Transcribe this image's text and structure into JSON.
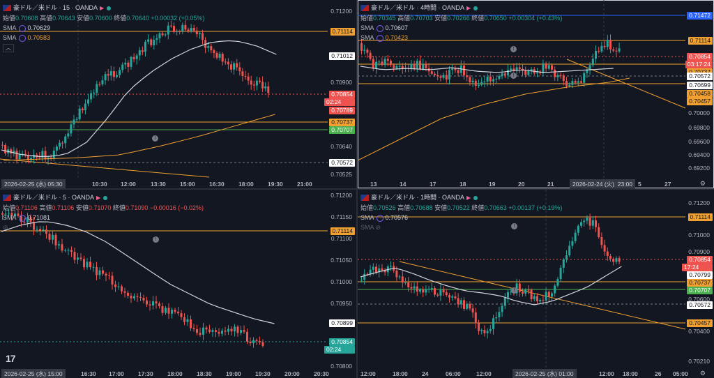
{
  "panels": [
    {
      "id": "p15",
      "title": "豪ドル／米ドル · 15 · OANDA",
      "ohlc": {
        "o_label": "始値",
        "o": "0.70608",
        "h_label": "高値",
        "h": "0.70643",
        "l_label": "安値",
        "l": "0.70600",
        "c_label": "終値",
        "c": "0.70640",
        "chg": "+0.00032 (+0.05%)",
        "chg_dir": "up"
      },
      "sma": [
        {
          "label": "SMA",
          "value": "0.70629",
          "color": "#d1d4dc"
        },
        {
          "label": "SMA",
          "value": "0.70583",
          "color": "#f0a030"
        }
      ],
      "collapse_icon": "chevron-up",
      "price_labels": [
        "0.71200",
        "0.70900",
        "0.70640",
        "0.70525"
      ],
      "tags": [
        {
          "text": "0.71114",
          "bg": "#f0a030",
          "fg": "#131722"
        },
        {
          "text": "0.71012",
          "bg": "#ffffff",
          "fg": "#131722"
        },
        {
          "text": "0.70854",
          "bg": "#ef5350",
          "fg": "#ffffff"
        },
        {
          "text": "02:24",
          "bg": "#ef5350",
          "fg": "#ffffff"
        },
        {
          "text": "0.70789",
          "bg": "#ef5350",
          "fg": "#ffffff"
        },
        {
          "text": "0.70737",
          "bg": "#f0a030",
          "fg": "#131722"
        },
        {
          "text": "0.70707",
          "bg": "#4caf50",
          "fg": "#ffffff"
        },
        {
          "text": "0.70572",
          "bg": "#ffffff",
          "fg": "#131722"
        }
      ],
      "time_labels": [
        "10:30",
        "12:00",
        "13:30",
        "15:00",
        "16:30",
        "18:00",
        "19:30",
        "21:00"
      ],
      "cross_time": "2026-02-25 (水)  05:30"
    },
    {
      "id": "p4h",
      "title": "豪ドル／米ドル · 4時間 · OANDA",
      "ohlc": {
        "o_label": "始値",
        "o": "0.70345",
        "h_label": "高値",
        "h": "0.70703",
        "l_label": "安値",
        "l": "0.70266",
        "c_label": "終値",
        "c": "0.70650",
        "chg": "+0.00304 (+0.43%)",
        "chg_dir": "up"
      },
      "sma": [
        {
          "label": "SMA",
          "value": "0.70607",
          "color": "#d1d4dc"
        },
        {
          "label": "SMA",
          "value": "0.70423",
          "color": "#f0a030"
        }
      ],
      "price_labels": [
        "0.70000",
        "0.69800",
        "0.69600",
        "0.69400",
        "0.69200"
      ],
      "tags": [
        {
          "text": "0.71472",
          "bg": "#2962ff",
          "fg": "#ffffff"
        },
        {
          "text": "0.71114",
          "bg": "#f0a030",
          "fg": "#131722"
        },
        {
          "text": "0.70854",
          "bg": "#ef5350",
          "fg": "#ffffff"
        },
        {
          "text": "03:17:24",
          "bg": "#ef5350",
          "fg": "#ffffff"
        },
        {
          "text": "0.70572",
          "bg": "#ffffff",
          "fg": "#131722"
        },
        {
          "text": "0.70737",
          "bg": "#f0a030",
          "fg": "#131722"
        },
        {
          "text": "0.70699",
          "bg": "#ffffff",
          "fg": "#131722"
        },
        {
          "text": "0.70458",
          "bg": "#f0a030",
          "fg": "#131722"
        },
        {
          "text": "0.70457",
          "bg": "#f0a030",
          "fg": "#131722"
        }
      ],
      "time_labels": [
        "13",
        "14",
        "17",
        "18",
        "19",
        "20",
        "21",
        "23:00",
        "5",
        "27"
      ],
      "cross_time": "2026-02-24 (火)"
    },
    {
      "id": "p5",
      "title": "豪ドル／米ドル · 5 · OANDA",
      "ohlc": {
        "o_label": "始値",
        "o": "0.71106",
        "h_label": "高値",
        "h": "0.71106",
        "l_label": "安値",
        "l": "0.71070",
        "c_label": "終値",
        "c": "0.71090",
        "chg": "−0.00016 (−0.02%)",
        "chg_dir": "down"
      },
      "sma": [
        {
          "label": "SMA",
          "value": "0.71081",
          "color": "#d1d4dc"
        }
      ],
      "price_labels": [
        "0.71200",
        "0.71150",
        "0.71100",
        "0.71050",
        "0.71000",
        "0.70950",
        "0.70800"
      ],
      "tags": [
        {
          "text": "0.71114",
          "bg": "#f0a030",
          "fg": "#131722"
        },
        {
          "text": "0.70899",
          "bg": "#ffffff",
          "fg": "#131722"
        },
        {
          "text": "0.70854",
          "bg": "#26a69a",
          "fg": "#ffffff"
        },
        {
          "text": "02:24",
          "bg": "#26a69a",
          "fg": "#ffffff"
        }
      ],
      "time_labels": [
        "16:30",
        "17:00",
        "17:30",
        "18:00",
        "18:30",
        "19:00",
        "19:30",
        "20:00",
        "20:30"
      ],
      "cross_time": "2026-02-25 (水)  15:00",
      "logo": "17"
    },
    {
      "id": "p1h",
      "title": "豪ドル／米ドル · 1時間 · OANDA",
      "ohlc": {
        "o_label": "始値",
        "o": "0.70526",
        "h_label": "高値",
        "h": "0.70688",
        "l_label": "安値",
        "l": "0.70522",
        "c_label": "終値",
        "c": "0.70663",
        "chg": "+0.00137 (+0.19%)",
        "chg_dir": "up"
      },
      "sma": [
        {
          "label": "SMA",
          "value": "0.70576",
          "color": "#d1d4dc"
        },
        {
          "label": "SMA",
          "value": "",
          "color": "#5d606b"
        }
      ],
      "price_labels": [
        "0.71200",
        "0.71000",
        "0.70900",
        "0.70600",
        "0.70400",
        "0.70210"
      ],
      "tags": [
        {
          "text": "0.71114",
          "bg": "#f0a030",
          "fg": "#131722"
        },
        {
          "text": "0.70854",
          "bg": "#ef5350",
          "fg": "#ffffff"
        },
        {
          "text": "17:24",
          "bg": "#ef5350",
          "fg": "#ffffff"
        },
        {
          "text": "0.70799",
          "bg": "#ffffff",
          "fg": "#131722"
        },
        {
          "text": "0.70737",
          "bg": "#f0a030",
          "fg": "#131722"
        },
        {
          "text": "0.70707",
          "bg": "#4caf50",
          "fg": "#ffffff"
        },
        {
          "text": "0.70572",
          "bg": "#ffffff",
          "fg": "#131722"
        },
        {
          "text": "0.70457",
          "bg": "#f0a030",
          "fg": "#131722"
        }
      ],
      "time_labels": [
        "12:00",
        "18:00",
        "24",
        "06:00",
        "12:00",
        "18:00",
        "26",
        "05:00"
      ],
      "cross_time": "2026-02-25 (水)  01:00"
    }
  ]
}
